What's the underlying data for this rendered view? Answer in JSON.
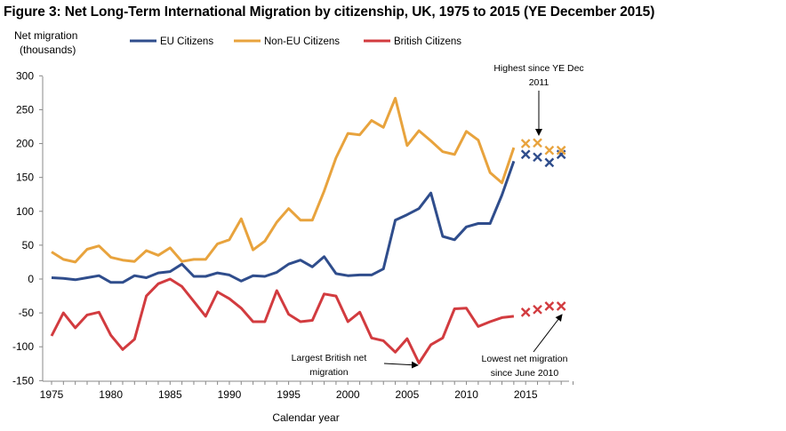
{
  "chart_data": {
    "type": "line",
    "title": "Figure 3: Net Long-Term International Migration by citizenship, UK, 1975 to 2015 (YE December 2015)",
    "ylabel": [
      "Net migration",
      "(thousands)"
    ],
    "xlabel": "Calendar year",
    "ylim": [
      -150,
      300
    ],
    "xlim": [
      1975,
      2019
    ],
    "yticks": [
      -150,
      -100,
      -50,
      0,
      50,
      100,
      150,
      200,
      250,
      300
    ],
    "xticks": [
      1975,
      1980,
      1985,
      1990,
      1995,
      2000,
      2005,
      2010,
      2015
    ],
    "grid": false,
    "legend_position": "top",
    "series": [
      {
        "name": "EU Citizens",
        "color": "#2F4D8C",
        "x": [
          1975,
          1976,
          1977,
          1978,
          1979,
          1980,
          1981,
          1982,
          1983,
          1984,
          1985,
          1986,
          1987,
          1988,
          1989,
          1990,
          1991,
          1992,
          1993,
          1994,
          1995,
          1996,
          1997,
          1998,
          1999,
          2000,
          2001,
          2002,
          2003,
          2004,
          2005,
          2006,
          2007,
          2008,
          2009,
          2010,
          2011,
          2012,
          2013,
          2014
        ],
        "values": [
          2,
          1,
          -1,
          2,
          5,
          -5,
          -5,
          5,
          2,
          9,
          11,
          22,
          4,
          4,
          9,
          6,
          -3,
          5,
          4,
          10,
          22,
          28,
          18,
          33,
          8,
          5,
          6,
          6,
          15,
          87,
          95,
          104,
          127,
          63,
          58,
          77,
          82,
          82,
          124,
          174
        ],
        "extra_x": [
          2015,
          2016,
          2017,
          2018
        ],
        "extra_values": [
          184,
          180,
          172,
          184
        ]
      },
      {
        "name": "Non-EU Citizens",
        "color": "#E8A33D",
        "x": [
          1975,
          1976,
          1977,
          1978,
          1979,
          1980,
          1981,
          1982,
          1983,
          1984,
          1985,
          1986,
          1987,
          1988,
          1989,
          1990,
          1991,
          1992,
          1993,
          1994,
          1995,
          1996,
          1997,
          1998,
          1999,
          2000,
          2001,
          2002,
          2003,
          2004,
          2005,
          2006,
          2007,
          2008,
          2009,
          2010,
          2011,
          2012,
          2013,
          2014
        ],
        "values": [
          40,
          29,
          25,
          44,
          49,
          32,
          28,
          26,
          42,
          35,
          46,
          26,
          29,
          29,
          52,
          58,
          89,
          43,
          56,
          84,
          104,
          87,
          87,
          130,
          179,
          215,
          213,
          234,
          224,
          267,
          197,
          219,
          204,
          188,
          184,
          218,
          205,
          157,
          142,
          194
        ],
        "extra_x": [
          2015,
          2016,
          2017,
          2018
        ],
        "extra_values": [
          200,
          201,
          190,
          190
        ]
      },
      {
        "name": "British Citizens",
        "color": "#D23B3F",
        "x": [
          1975,
          1976,
          1977,
          1978,
          1979,
          1980,
          1981,
          1982,
          1983,
          1984,
          1985,
          1986,
          1987,
          1988,
          1989,
          1990,
          1991,
          1992,
          1993,
          1994,
          1995,
          1996,
          1997,
          1998,
          1999,
          2000,
          2001,
          2002,
          2003,
          2004,
          2005,
          2006,
          2007,
          2008,
          2009,
          2010,
          2011,
          2012,
          2013,
          2014
        ],
        "values": [
          -84,
          -50,
          -72,
          -53,
          -49,
          -83,
          -104,
          -89,
          -25,
          -7,
          0,
          -11,
          -33,
          -55,
          -19,
          -29,
          -43,
          -63,
          -63,
          -17,
          -52,
          -63,
          -61,
          -22,
          -25,
          -63,
          -49,
          -87,
          -91,
          -108,
          -88,
          -124,
          -97,
          -87,
          -44,
          -43,
          -70,
          -63,
          -57,
          -55
        ],
        "extra_x": [
          2015,
          2016,
          2017,
          2018
        ],
        "extra_values": [
          -49,
          -45,
          -40,
          -40
        ]
      }
    ],
    "annotations": [
      {
        "id": "highest",
        "lines": [
          "Highest since YE Dec",
          "2011"
        ]
      },
      {
        "id": "largest",
        "lines": [
          "Largest British net",
          "migration"
        ]
      },
      {
        "id": "lowest",
        "lines": [
          "Lowest net migration",
          "since June 2010"
        ]
      }
    ]
  }
}
